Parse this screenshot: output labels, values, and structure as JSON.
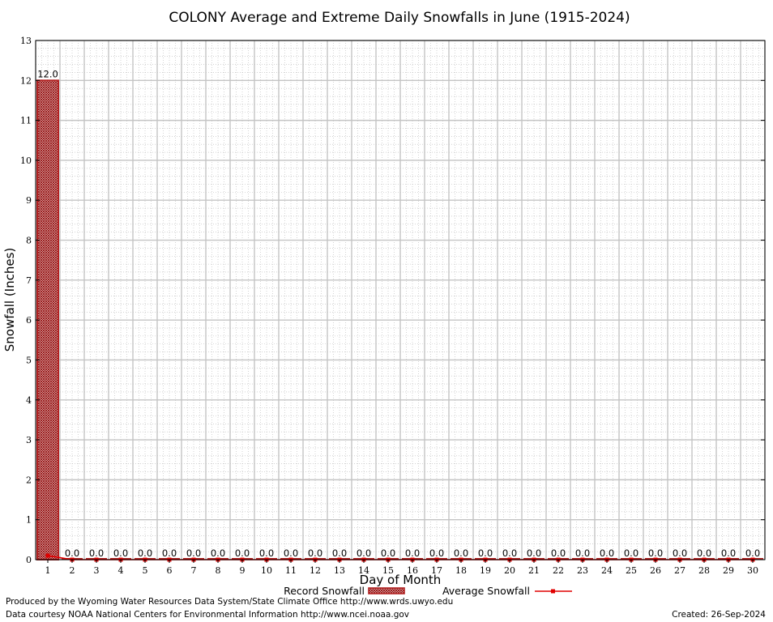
{
  "chart_data": {
    "type": "bar",
    "title": "COLONY Average and Extreme Daily Snowfalls in June (1915-2024)",
    "xlabel": "Day of Month",
    "ylabel": "Snowfall (Inches)",
    "ylim": [
      0,
      13
    ],
    "yticks": [
      "0",
      "1",
      "2",
      "3",
      "4",
      "5",
      "6",
      "7",
      "8",
      "9",
      "10",
      "11",
      "12",
      "13"
    ],
    "categories": [
      "1",
      "2",
      "3",
      "4",
      "5",
      "6",
      "7",
      "8",
      "9",
      "10",
      "11",
      "12",
      "13",
      "14",
      "15",
      "16",
      "17",
      "18",
      "19",
      "20",
      "21",
      "22",
      "23",
      "24",
      "25",
      "26",
      "27",
      "28",
      "29",
      "30"
    ],
    "grid": true,
    "legend_position": "bottom",
    "series": [
      {
        "name": "Record Snowfall",
        "kind": "bar",
        "color": "#b22222",
        "values": [
          12.0,
          0,
          0,
          0,
          0,
          0,
          0,
          0,
          0,
          0,
          0,
          0,
          0,
          0,
          0,
          0,
          0,
          0,
          0,
          0,
          0,
          0,
          0,
          0,
          0,
          0,
          0,
          0,
          0,
          0
        ],
        "labels": [
          "12.0",
          "0.0",
          "0.0",
          "0.0",
          "0.0",
          "0.0",
          "0.0",
          "0.0",
          "0.0",
          "0.0",
          "0.0",
          "0.0",
          "0.0",
          "0.0",
          "0.0",
          "0.0",
          "0.0",
          "0.0",
          "0.0",
          "0.0",
          "0.0",
          "0.0",
          "0.0",
          "0.0",
          "0.0",
          "0.0",
          "0.0",
          "0.0",
          "0.0",
          "0.0"
        ]
      },
      {
        "name": "Average Snowfall",
        "kind": "line",
        "color": "#e00000",
        "values": [
          0.1,
          0,
          0,
          0,
          0,
          0,
          0,
          0,
          0,
          0,
          0,
          0,
          0,
          0,
          0,
          0,
          0,
          0,
          0,
          0,
          0,
          0,
          0,
          0,
          0,
          0,
          0,
          0,
          0,
          0
        ]
      }
    ]
  },
  "footer": {
    "produced_by": "Produced by the Wyoming Water Resources Data System/State Climate Office http://www.wrds.uwyo.edu",
    "courtesy": "Data courtesy NOAA National Centers for Environmental Information http://www.ncei.noaa.gov",
    "created": "Created: 26-Sep-2024"
  }
}
